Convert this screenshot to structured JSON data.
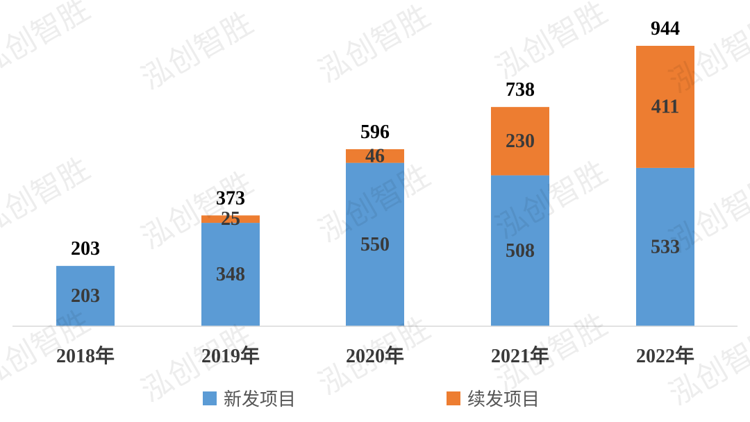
{
  "chart_data": {
    "type": "bar",
    "stacked": true,
    "categories": [
      "2018年",
      "2019年",
      "2020年",
      "2021年",
      "2022年"
    ],
    "series": [
      {
        "name": "新发项目",
        "values": [
          203,
          348,
          550,
          508,
          533
        ],
        "color": "#5b9bd5"
      },
      {
        "name": "续发项目",
        "values": [
          0,
          25,
          46,
          230,
          411
        ],
        "color": "#ed7d31"
      }
    ],
    "totals": [
      203,
      373,
      596,
      738,
      944
    ],
    "title": "",
    "xlabel": "",
    "ylabel": "",
    "ylim": [
      0,
      944
    ],
    "grid": false,
    "legend_position": "bottom"
  },
  "watermark_text": "泓创智胜"
}
